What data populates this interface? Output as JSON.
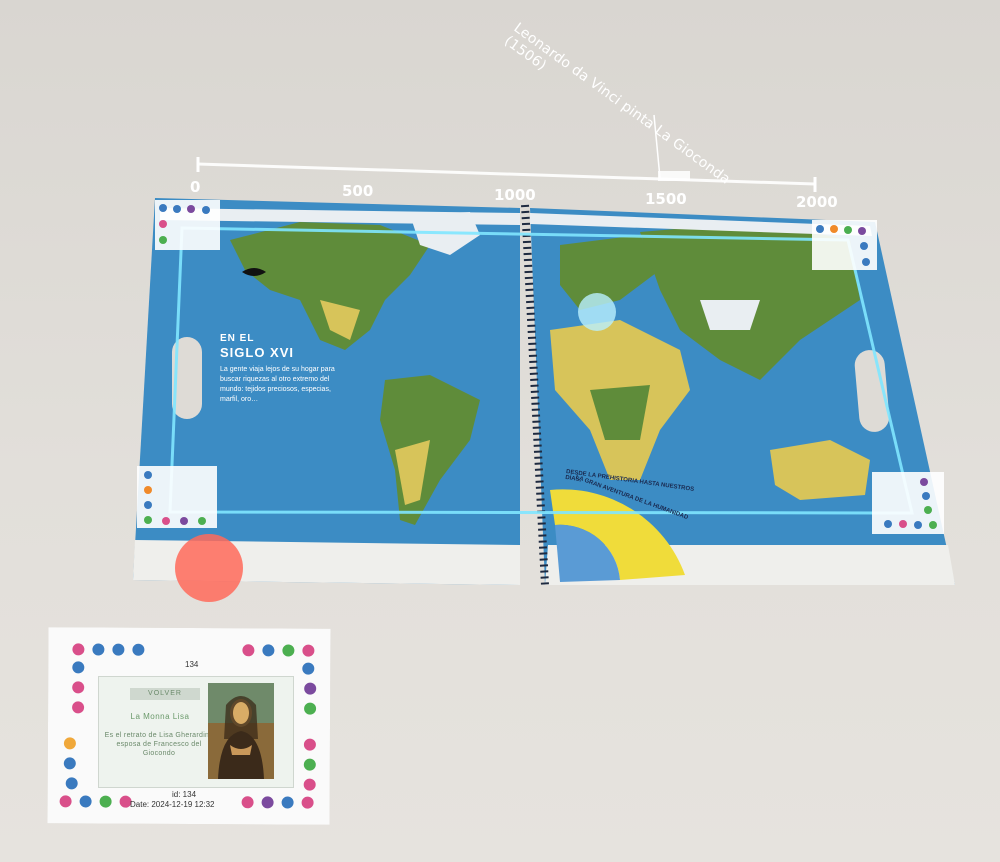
{
  "timeline": {
    "ticks": [
      "0",
      "500",
      "1000",
      "1500",
      "2000"
    ],
    "event_label": "Leonardo da Vinci pinta La Gioconda (1506)"
  },
  "book": {
    "title_line1": "EN EL",
    "title_line2": "SIGLO XVI",
    "intro_text": "La gente viaja lejos de su hogar para buscar riquezas al otro extremo del mundo: tejidos preciosos, especias, marfil, oro…",
    "dial_text_1": "DESDE LA PREHISTORIA HASTA NUESTROS DÍAS,",
    "dial_text_2": "LA GRAN AVENTURA DE LA HUMANIDAD",
    "colors": {
      "ocean": "#3c8cc4",
      "land": "#5f8c3a",
      "desert": "#d7c45a",
      "dial": "#f0dc3a",
      "projection": "#7fe6ff",
      "pointer": "#ff6a5a"
    }
  },
  "card": {
    "id_top": "134",
    "header": "VOLVER",
    "title": "La Monna Lisa",
    "description": "Es el retrato de Lisa Gherardini, esposa de Francesco del Giocondo",
    "id_bottom": "id: 134",
    "date": "Date: 2024-12-19 12:32",
    "painting_icon": "mona-lisa-painting"
  }
}
